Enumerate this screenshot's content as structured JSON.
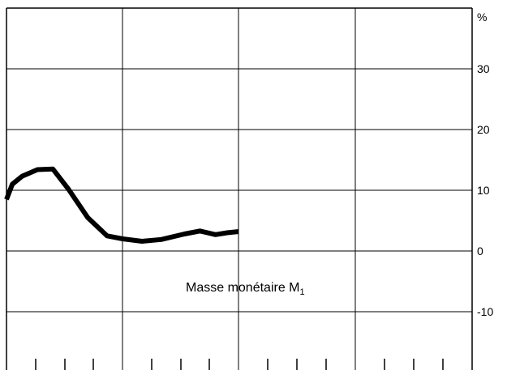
{
  "chart_data": {
    "type": "line",
    "title": "",
    "xlabel": "",
    "ylabel": "",
    "unit_label": "%",
    "ylim": [
      -18,
      40
    ],
    "y_ticks": [
      30,
      20,
      10,
      0,
      -10
    ],
    "y_tick_labels": [
      "30",
      "20",
      "10",
      "0",
      "-10"
    ],
    "grid": true,
    "series": [
      {
        "name": "Masse monétaire M1",
        "x": [
          0.0,
          0.15,
          0.4,
          0.8,
          1.2,
          1.6,
          2.1,
          2.6,
          3.0,
          3.5,
          4.0,
          4.6,
          5.0,
          5.4,
          5.7,
          6.0
        ],
        "values": [
          8.5,
          11.0,
          12.3,
          13.4,
          13.5,
          10.2,
          5.5,
          2.5,
          2.0,
          1.6,
          1.9,
          2.8,
          3.3,
          2.7,
          3.0,
          3.2
        ]
      }
    ],
    "annotation": {
      "text": "Masse monétaire M",
      "subscript": "1"
    }
  }
}
